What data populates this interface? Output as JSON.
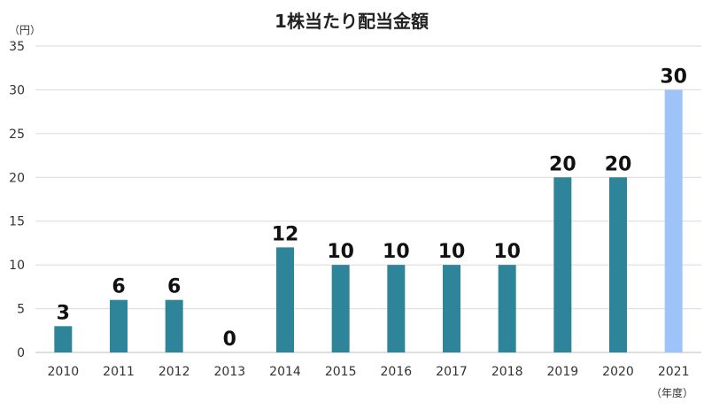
{
  "chart_data": {
    "type": "bar",
    "title": "1株当たり配当金額",
    "y_unit": "（円）",
    "x_unit": "（年度）",
    "categories": [
      "2010",
      "2011",
      "2012",
      "2013",
      "2014",
      "2015",
      "2016",
      "2017",
      "2018",
      "2019",
      "2020",
      "2021"
    ],
    "values": [
      3,
      6,
      6,
      0,
      12,
      10,
      10,
      10,
      10,
      20,
      20,
      30
    ],
    "data_labels": [
      "3",
      "6",
      "6",
      "0",
      "12",
      "10",
      "10",
      "10",
      "10",
      "20",
      "20",
      "30"
    ],
    "ylim": [
      0,
      35
    ],
    "yticks": [
      0,
      5,
      10,
      15,
      20,
      25,
      30,
      35
    ],
    "ytick_labels": [
      "0",
      "5",
      "10",
      "15",
      "20",
      "25",
      "30",
      "35"
    ],
    "grid": true,
    "colors": {
      "bar": "#2E8599",
      "highlight": "#9DC3F9",
      "grid": "#D9D9D9",
      "axis": "#BFBFBF"
    },
    "highlight_category": "2021"
  }
}
